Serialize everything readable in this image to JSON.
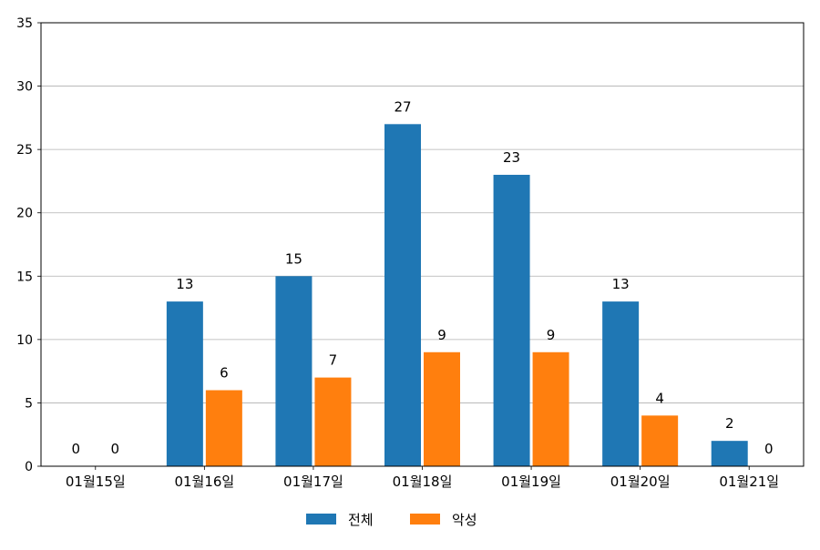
{
  "chart_data": {
    "type": "bar",
    "categories": [
      "01월15일",
      "01월16일",
      "01월17일",
      "01월18일",
      "01월19일",
      "01월20일",
      "01월21일"
    ],
    "series": [
      {
        "name": "전체",
        "values": [
          0,
          13,
          15,
          27,
          23,
          13,
          2
        ],
        "color": "#1f77b4"
      },
      {
        "name": "악성",
        "values": [
          0,
          6,
          7,
          9,
          9,
          4,
          0
        ],
        "color": "#ff7f0e"
      }
    ],
    "ylim": [
      0,
      35
    ],
    "yticks": [
      0,
      5,
      10,
      15,
      20,
      25,
      30,
      35
    ],
    "grid": true,
    "legend": "bottom-center",
    "data_labels": true
  }
}
